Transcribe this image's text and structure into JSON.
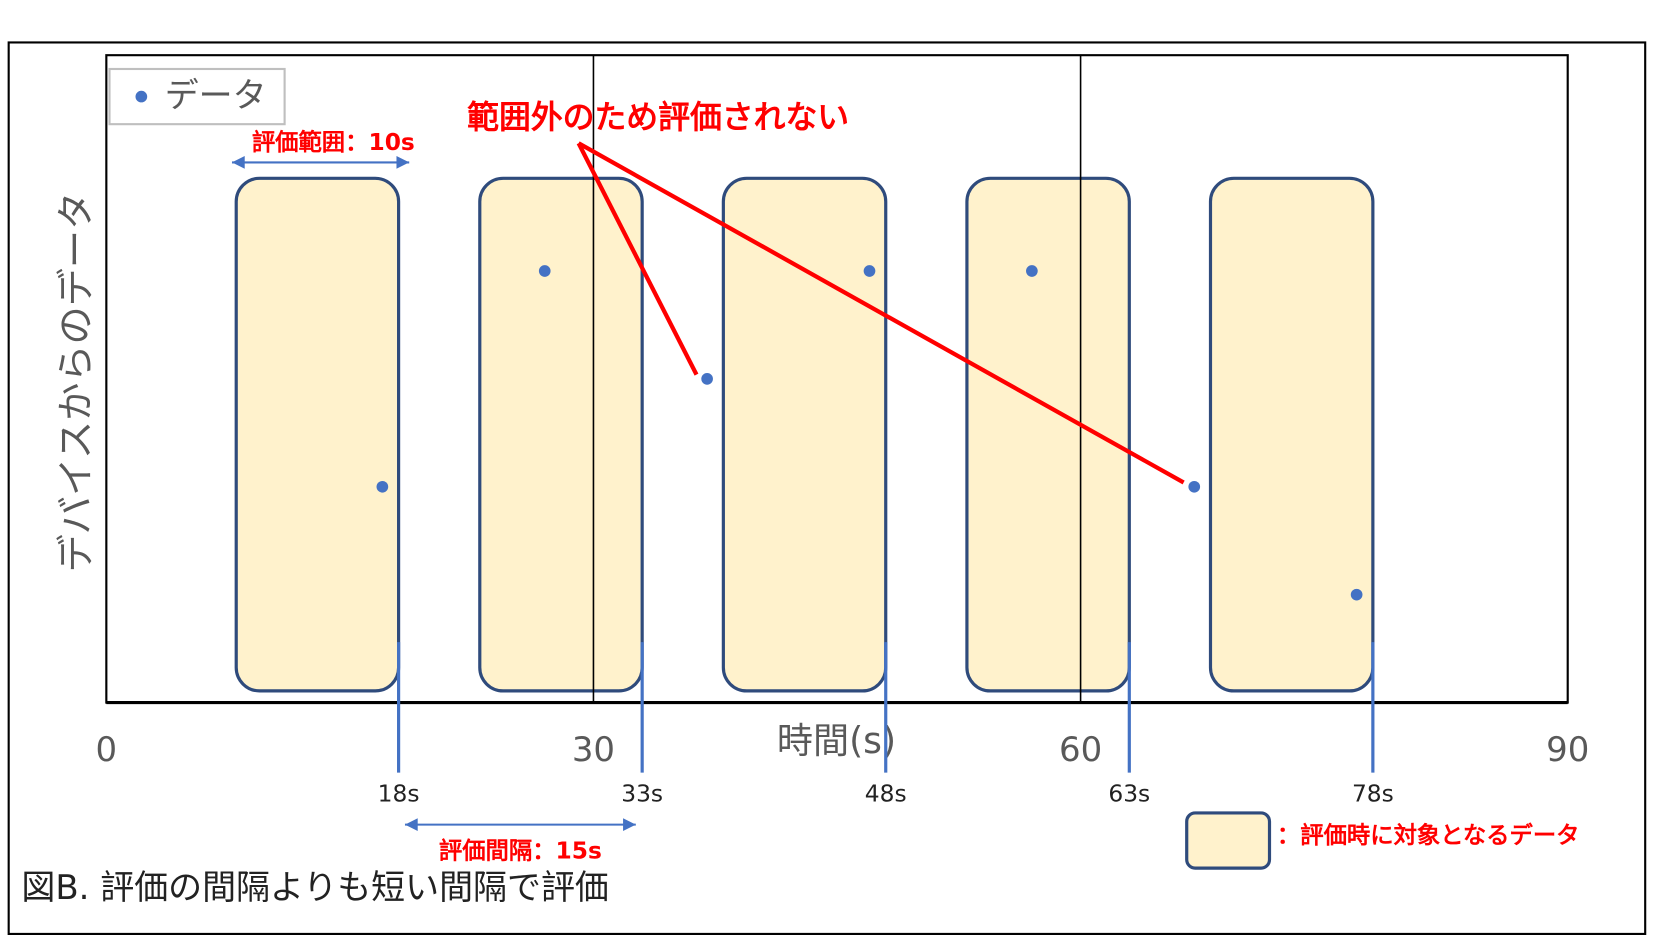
{
  "chart_data": {
    "type": "scatter",
    "caption": "図B. 評価の間隔よりも短い間隔で評価",
    "x_label": "時間(s)",
    "y_label": "デバイスからのデータ",
    "xlim": [
      0,
      90
    ],
    "xticks": [
      0,
      30,
      60,
      90
    ],
    "ylim": [
      0,
      6
    ],
    "grid": true,
    "legend": "upper left",
    "series": [
      {
        "name": "データ",
        "color": "#4472c4",
        "x": [
          17,
          27,
          37,
          47,
          57,
          67,
          77
        ],
        "y": [
          2,
          4,
          3,
          4,
          4,
          2,
          1
        ]
      }
    ],
    "windows": {
      "name": "：評価時に対象となるデータ",
      "color": "#fff2cc",
      "edge": "#2f4b7c",
      "marker_color": "#4472c4",
      "ranges": [
        {
          "start": 8,
          "end": {
            "value": 18,
            "label": "18s"
          }
        },
        {
          "start": 23,
          "end": {
            "value": 33,
            "label": "33s"
          }
        },
        {
          "start": 38,
          "end": {
            "value": 48,
            "label": "48s"
          }
        },
        {
          "start": 53,
          "end": {
            "value": 63,
            "label": "63s"
          }
        },
        {
          "start": 68,
          "end": {
            "value": 78,
            "label": "78s"
          }
        }
      ]
    },
    "annotations": {
      "range_label": "評価範囲：10s",
      "interval_label": "評価間隔：15s",
      "out_of_range": "範囲外のため評価されない",
      "color": "#ff0000"
    }
  }
}
